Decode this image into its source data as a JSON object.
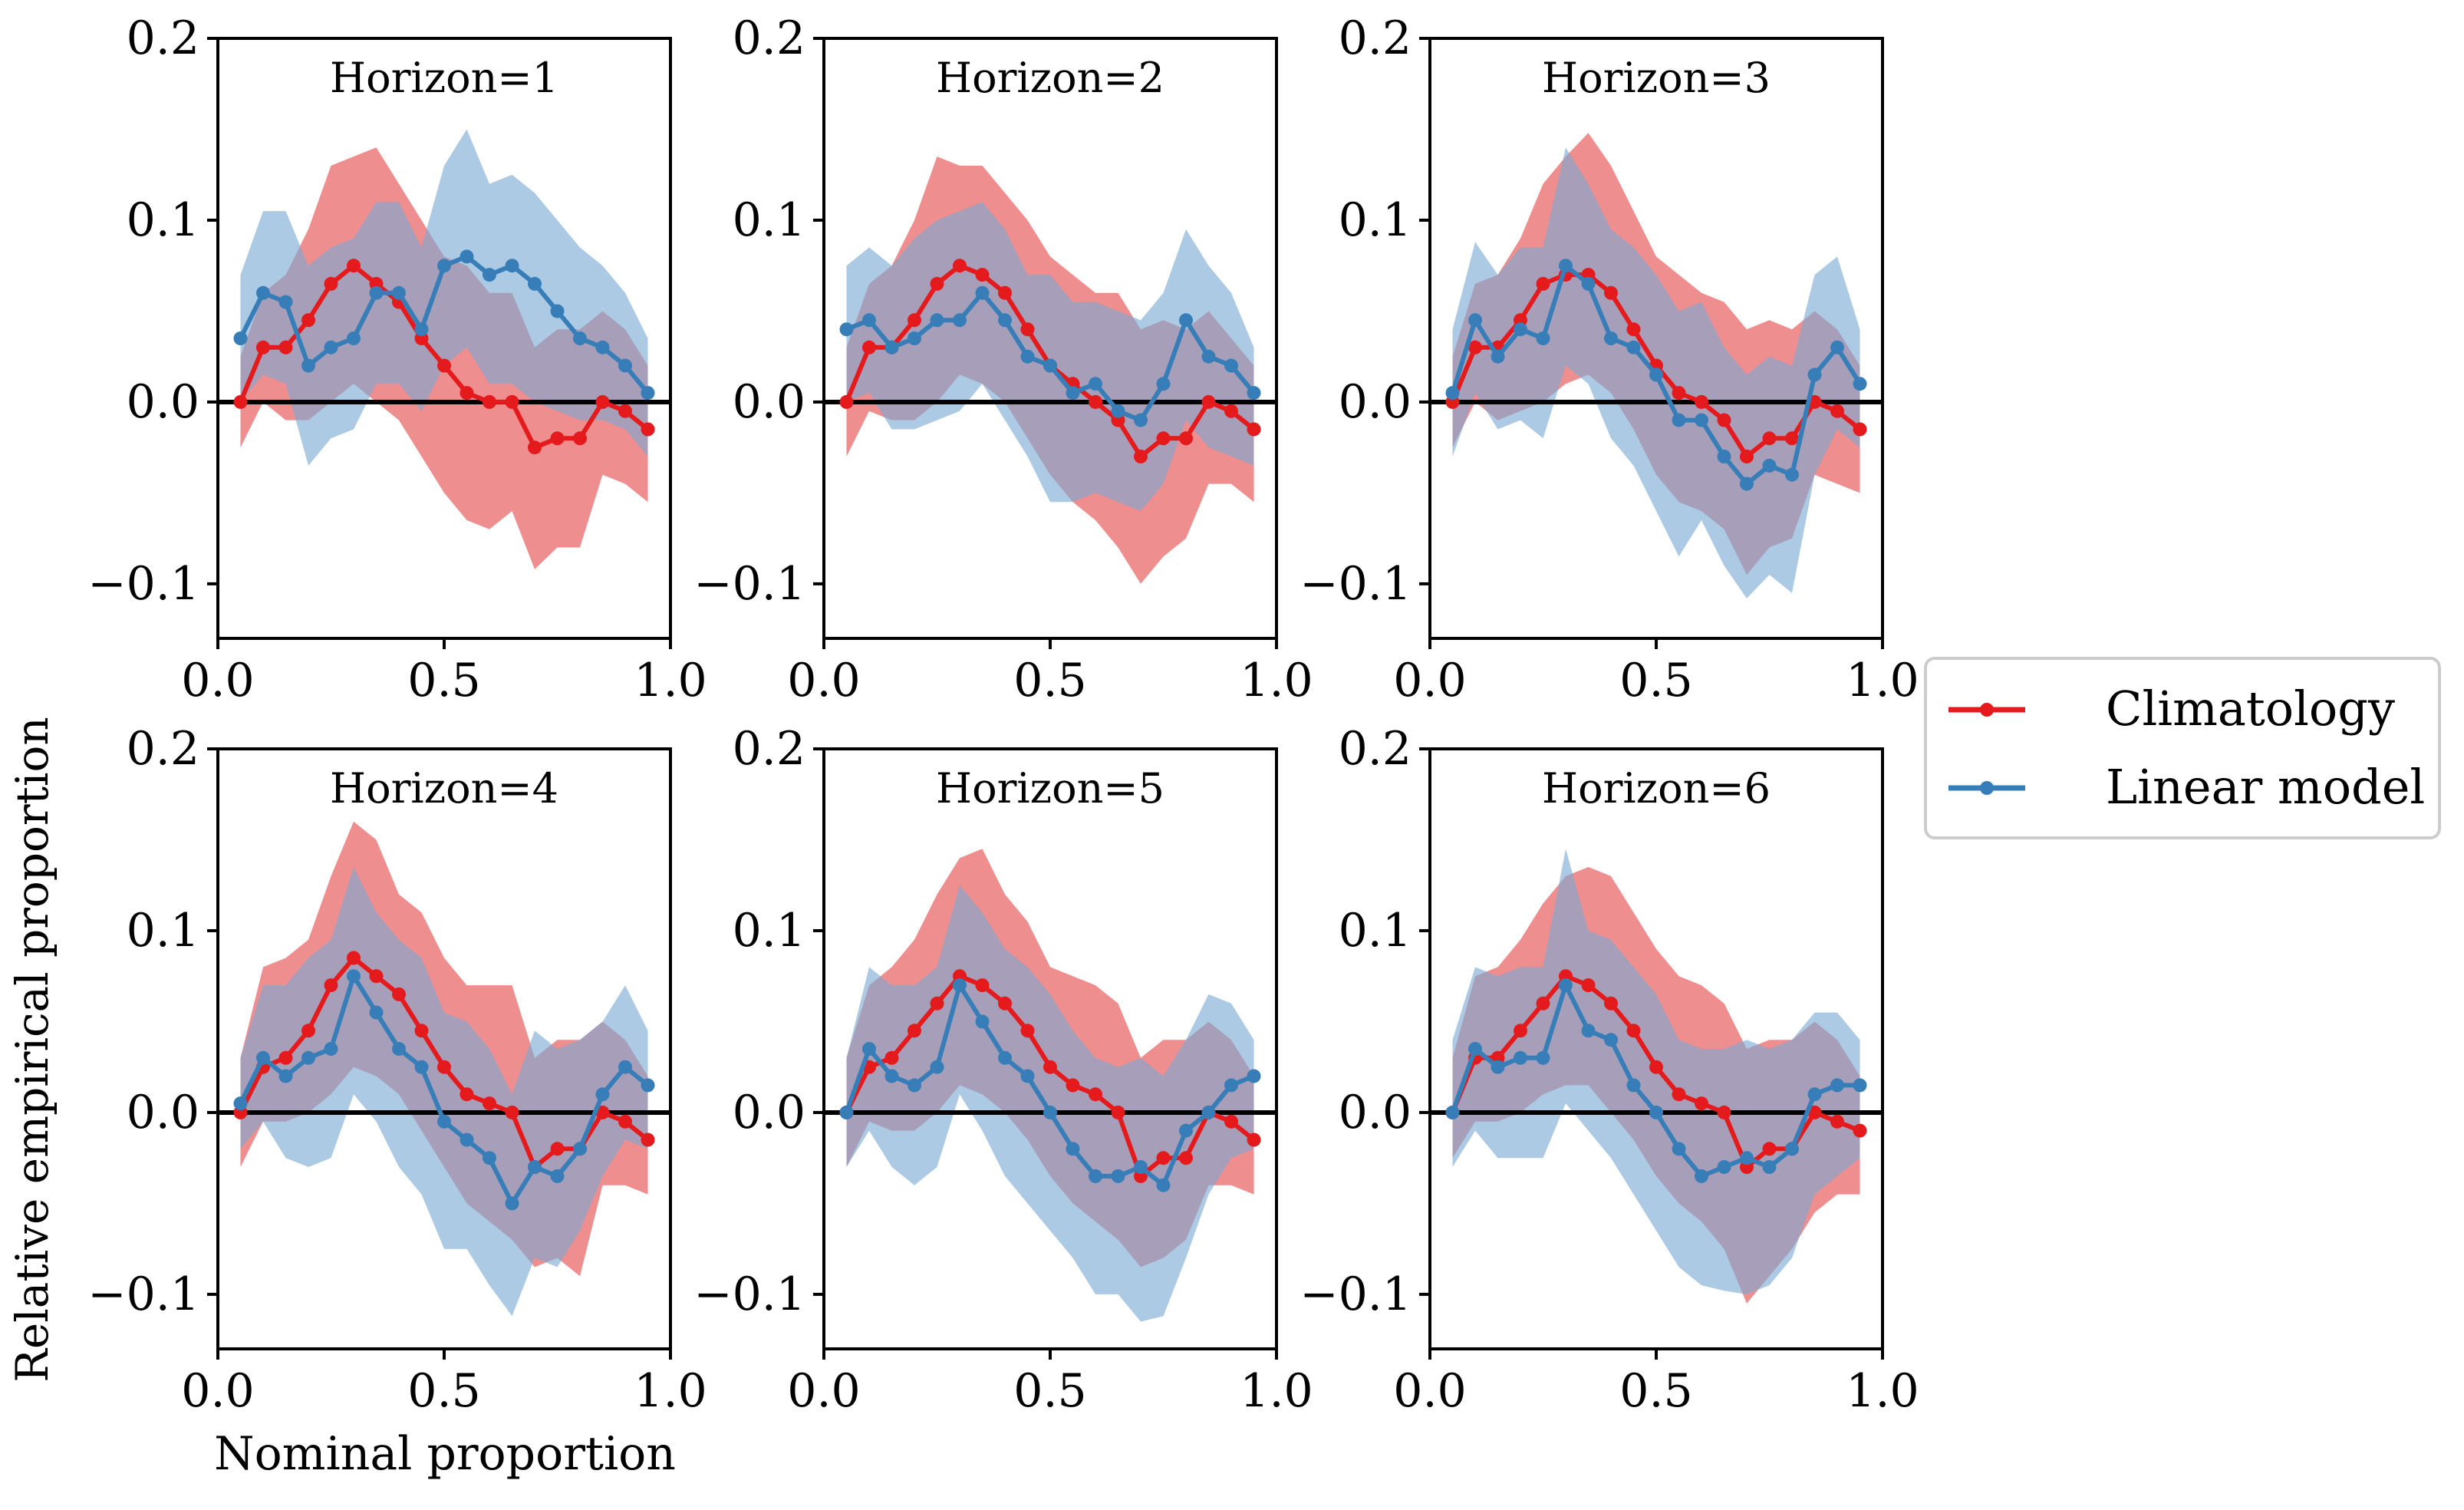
{
  "figure": {
    "ylabel": "Relative empirical proportion",
    "xlabel": "Nominal proportion",
    "legend": {
      "placement": "right-center",
      "entries": [
        {
          "name": "Climatology",
          "color": "#e41a1c"
        },
        {
          "name": "Linear model",
          "color": "#377eb8"
        }
      ]
    }
  },
  "colors": {
    "climatology_line": "#e41a1c",
    "climatology_band": "#e8585a",
    "linear_line": "#377eb8",
    "linear_band": "#7aa9d3",
    "zero_line": "#000000"
  },
  "chart_data": [
    {
      "type": "line",
      "title": "Horizon=1",
      "xlim": [
        0,
        1
      ],
      "ylim": [
        -0.13,
        0.2
      ],
      "xticks": [
        0.0,
        0.5,
        1.0
      ],
      "xtick_labels": [
        "0.0",
        "0.5",
        "1.0"
      ],
      "yticks": [
        -0.1,
        0.0,
        0.1,
        0.2
      ],
      "ytick_labels": [
        "−0.1",
        "0.0",
        "0.1",
        "0.2"
      ],
      "x": [
        0.05,
        0.1,
        0.15,
        0.2,
        0.25,
        0.3,
        0.35,
        0.4,
        0.45,
        0.5,
        0.55,
        0.6,
        0.65,
        0.7,
        0.75,
        0.8,
        0.85,
        0.9,
        0.95
      ],
      "series": [
        {
          "name": "Climatology",
          "values": [
            0.0,
            0.03,
            0.03,
            0.045,
            0.065,
            0.075,
            0.065,
            0.055,
            0.035,
            0.02,
            0.005,
            0.0,
            0.0,
            -0.025,
            -0.02,
            -0.02,
            0.0,
            -0.005,
            -0.015
          ],
          "lower": [
            -0.025,
            0.0,
            -0.01,
            -0.01,
            0.0,
            0.01,
            0.0,
            -0.01,
            -0.03,
            -0.05,
            -0.065,
            -0.07,
            -0.06,
            -0.092,
            -0.08,
            -0.08,
            -0.04,
            -0.045,
            -0.055
          ],
          "upper": [
            0.025,
            0.06,
            0.07,
            0.095,
            0.13,
            0.135,
            0.14,
            0.12,
            0.1,
            0.08,
            0.075,
            0.06,
            0.06,
            0.03,
            0.04,
            0.04,
            0.05,
            0.04,
            0.02
          ]
        },
        {
          "name": "Linear model",
          "values": [
            0.035,
            0.06,
            0.055,
            0.02,
            0.03,
            0.035,
            0.06,
            0.06,
            0.04,
            0.075,
            0.08,
            0.07,
            0.075,
            0.065,
            0.05,
            0.035,
            0.03,
            0.02,
            0.005
          ],
          "lower": [
            0.0,
            0.015,
            0.01,
            -0.035,
            -0.02,
            -0.015,
            0.01,
            0.01,
            -0.005,
            0.02,
            0.03,
            0.01,
            0.01,
            0.0,
            -0.005,
            -0.01,
            -0.01,
            -0.015,
            -0.03
          ],
          "upper": [
            0.07,
            0.105,
            0.105,
            0.075,
            0.085,
            0.09,
            0.11,
            0.11,
            0.085,
            0.13,
            0.15,
            0.12,
            0.125,
            0.115,
            0.1,
            0.085,
            0.075,
            0.06,
            0.035
          ]
        }
      ]
    },
    {
      "type": "line",
      "title": "Horizon=2",
      "xlim": [
        0,
        1
      ],
      "ylim": [
        -0.13,
        0.2
      ],
      "xticks": [
        0.0,
        0.5,
        1.0
      ],
      "xtick_labels": [
        "0.0",
        "0.5",
        "1.0"
      ],
      "yticks": [
        -0.1,
        0.0,
        0.1,
        0.2
      ],
      "ytick_labels": [
        "−0.1",
        "0.0",
        "0.1",
        "0.2"
      ],
      "x": [
        0.05,
        0.1,
        0.15,
        0.2,
        0.25,
        0.3,
        0.35,
        0.4,
        0.45,
        0.5,
        0.55,
        0.6,
        0.65,
        0.7,
        0.75,
        0.8,
        0.85,
        0.9,
        0.95
      ],
      "series": [
        {
          "name": "Climatology",
          "values": [
            0.0,
            0.03,
            0.03,
            0.045,
            0.065,
            0.075,
            0.07,
            0.06,
            0.04,
            0.02,
            0.01,
            0.0,
            -0.01,
            -0.03,
            -0.02,
            -0.02,
            0.0,
            -0.005,
            -0.015
          ],
          "lower": [
            -0.03,
            -0.005,
            -0.01,
            -0.01,
            0.0,
            0.015,
            0.01,
            0.0,
            -0.02,
            -0.04,
            -0.055,
            -0.065,
            -0.08,
            -0.1,
            -0.085,
            -0.075,
            -0.045,
            -0.045,
            -0.055
          ],
          "upper": [
            0.03,
            0.065,
            0.075,
            0.1,
            0.135,
            0.13,
            0.13,
            0.115,
            0.1,
            0.08,
            0.07,
            0.06,
            0.06,
            0.04,
            0.045,
            0.04,
            0.05,
            0.035,
            0.02
          ]
        },
        {
          "name": "Linear model",
          "values": [
            0.04,
            0.045,
            0.03,
            0.035,
            0.045,
            0.045,
            0.06,
            0.045,
            0.025,
            0.02,
            0.005,
            0.01,
            -0.005,
            -0.01,
            0.01,
            0.045,
            0.025,
            0.02,
            0.005
          ],
          "lower": [
            0.0,
            0.005,
            -0.015,
            -0.015,
            -0.01,
            -0.005,
            0.01,
            -0.01,
            -0.03,
            -0.055,
            -0.055,
            -0.05,
            -0.055,
            -0.06,
            -0.045,
            -0.01,
            -0.025,
            -0.03,
            -0.035
          ],
          "upper": [
            0.075,
            0.085,
            0.075,
            0.09,
            0.1,
            0.105,
            0.11,
            0.095,
            0.07,
            0.07,
            0.055,
            0.055,
            0.05,
            0.045,
            0.06,
            0.095,
            0.075,
            0.06,
            0.03
          ]
        }
      ]
    },
    {
      "type": "line",
      "title": "Horizon=3",
      "xlim": [
        0,
        1
      ],
      "ylim": [
        -0.13,
        0.2
      ],
      "xticks": [
        0.0,
        0.5,
        1.0
      ],
      "xtick_labels": [
        "0.0",
        "0.5",
        "1.0"
      ],
      "yticks": [
        -0.1,
        0.0,
        0.1,
        0.2
      ],
      "ytick_labels": [
        "−0.1",
        "0.0",
        "0.1",
        "0.2"
      ],
      "x": [
        0.05,
        0.1,
        0.15,
        0.2,
        0.25,
        0.3,
        0.35,
        0.4,
        0.45,
        0.5,
        0.55,
        0.6,
        0.65,
        0.7,
        0.75,
        0.8,
        0.85,
        0.9,
        0.95
      ],
      "series": [
        {
          "name": "Climatology",
          "values": [
            0.0,
            0.03,
            0.03,
            0.045,
            0.065,
            0.07,
            0.07,
            0.06,
            0.04,
            0.02,
            0.005,
            0.0,
            -0.01,
            -0.03,
            -0.02,
            -0.02,
            0.0,
            -0.005,
            -0.015
          ],
          "lower": [
            -0.025,
            0.0,
            -0.01,
            -0.005,
            0.0,
            0.01,
            0.015,
            0.005,
            -0.015,
            -0.04,
            -0.055,
            -0.06,
            -0.07,
            -0.095,
            -0.08,
            -0.075,
            -0.04,
            -0.045,
            -0.05
          ],
          "upper": [
            0.025,
            0.065,
            0.07,
            0.09,
            0.12,
            0.135,
            0.148,
            0.13,
            0.105,
            0.08,
            0.07,
            0.06,
            0.055,
            0.04,
            0.045,
            0.04,
            0.05,
            0.04,
            0.02
          ]
        },
        {
          "name": "Linear model",
          "values": [
            0.005,
            0.045,
            0.025,
            0.04,
            0.035,
            0.075,
            0.065,
            0.035,
            0.03,
            0.015,
            -0.01,
            -0.01,
            -0.03,
            -0.045,
            -0.035,
            -0.04,
            0.015,
            0.03,
            0.01
          ],
          "lower": [
            -0.03,
            0.005,
            -0.015,
            -0.01,
            -0.02,
            0.02,
            0.01,
            -0.02,
            -0.035,
            -0.06,
            -0.085,
            -0.065,
            -0.09,
            -0.108,
            -0.095,
            -0.105,
            -0.04,
            -0.015,
            -0.025
          ],
          "upper": [
            0.04,
            0.088,
            0.07,
            0.085,
            0.085,
            0.14,
            0.12,
            0.095,
            0.085,
            0.07,
            0.05,
            0.055,
            0.03,
            0.015,
            0.025,
            0.02,
            0.07,
            0.08,
            0.04
          ]
        }
      ]
    },
    {
      "type": "line",
      "title": "Horizon=4",
      "xlim": [
        0,
        1
      ],
      "ylim": [
        -0.13,
        0.2
      ],
      "xticks": [
        0.0,
        0.5,
        1.0
      ],
      "xtick_labels": [
        "0.0",
        "0.5",
        "1.0"
      ],
      "yticks": [
        -0.1,
        0.0,
        0.1,
        0.2
      ],
      "ytick_labels": [
        "−0.1",
        "0.0",
        "0.1",
        "0.2"
      ],
      "x": [
        0.05,
        0.1,
        0.15,
        0.2,
        0.25,
        0.3,
        0.35,
        0.4,
        0.45,
        0.5,
        0.55,
        0.6,
        0.65,
        0.7,
        0.75,
        0.8,
        0.85,
        0.9,
        0.95
      ],
      "series": [
        {
          "name": "Climatology",
          "values": [
            0.0,
            0.025,
            0.03,
            0.045,
            0.07,
            0.085,
            0.075,
            0.065,
            0.045,
            0.025,
            0.01,
            0.005,
            0.0,
            -0.03,
            -0.02,
            -0.02,
            0.0,
            -0.005,
            -0.015
          ],
          "lower": [
            -0.03,
            -0.005,
            -0.005,
            0.0,
            0.01,
            0.025,
            0.02,
            0.01,
            -0.01,
            -0.03,
            -0.05,
            -0.06,
            -0.07,
            -0.085,
            -0.08,
            -0.09,
            -0.04,
            -0.04,
            -0.045
          ],
          "upper": [
            0.03,
            0.08,
            0.085,
            0.095,
            0.13,
            0.16,
            0.15,
            0.12,
            0.11,
            0.085,
            0.07,
            0.07,
            0.07,
            0.03,
            0.04,
            0.04,
            0.05,
            0.04,
            0.02
          ]
        },
        {
          "name": "Linear model",
          "values": [
            0.005,
            0.03,
            0.02,
            0.03,
            0.035,
            0.075,
            0.055,
            0.035,
            0.025,
            -0.005,
            -0.015,
            -0.025,
            -0.05,
            -0.03,
            -0.035,
            -0.02,
            0.01,
            0.025,
            0.015
          ],
          "lower": [
            -0.02,
            -0.005,
            -0.025,
            -0.03,
            -0.025,
            0.01,
            -0.005,
            -0.03,
            -0.045,
            -0.075,
            -0.075,
            -0.095,
            -0.112,
            -0.08,
            -0.085,
            -0.065,
            -0.035,
            -0.015,
            -0.02
          ],
          "upper": [
            0.03,
            0.07,
            0.07,
            0.085,
            0.095,
            0.135,
            0.11,
            0.095,
            0.085,
            0.055,
            0.05,
            0.035,
            0.01,
            0.045,
            0.035,
            0.04,
            0.05,
            0.07,
            0.045
          ]
        }
      ]
    },
    {
      "type": "line",
      "title": "Horizon=5",
      "xlim": [
        0,
        1
      ],
      "ylim": [
        -0.13,
        0.2
      ],
      "xticks": [
        0.0,
        0.5,
        1.0
      ],
      "xtick_labels": [
        "0.0",
        "0.5",
        "1.0"
      ],
      "yticks": [
        -0.1,
        0.0,
        0.1,
        0.2
      ],
      "ytick_labels": [
        "−0.1",
        "0.0",
        "0.1",
        "0.2"
      ],
      "x": [
        0.05,
        0.1,
        0.15,
        0.2,
        0.25,
        0.3,
        0.35,
        0.4,
        0.45,
        0.5,
        0.55,
        0.6,
        0.65,
        0.7,
        0.75,
        0.8,
        0.85,
        0.9,
        0.95
      ],
      "series": [
        {
          "name": "Climatology",
          "values": [
            0.0,
            0.025,
            0.03,
            0.045,
            0.06,
            0.075,
            0.07,
            0.06,
            0.045,
            0.025,
            0.015,
            0.01,
            0.0,
            -0.035,
            -0.025,
            -0.025,
            0.0,
            -0.005,
            -0.015
          ],
          "lower": [
            -0.03,
            -0.005,
            -0.01,
            -0.01,
            0.0,
            0.015,
            0.01,
            0.0,
            -0.015,
            -0.035,
            -0.05,
            -0.06,
            -0.07,
            -0.085,
            -0.08,
            -0.07,
            -0.04,
            -0.04,
            -0.045
          ],
          "upper": [
            0.03,
            0.07,
            0.08,
            0.095,
            0.12,
            0.14,
            0.145,
            0.12,
            0.105,
            0.08,
            0.075,
            0.07,
            0.06,
            0.03,
            0.04,
            0.04,
            0.05,
            0.04,
            0.02
          ]
        },
        {
          "name": "Linear model",
          "values": [
            0.0,
            0.035,
            0.02,
            0.015,
            0.025,
            0.07,
            0.05,
            0.03,
            0.02,
            0.0,
            -0.02,
            -0.035,
            -0.035,
            -0.03,
            -0.04,
            -0.01,
            0.0,
            0.015,
            0.02
          ],
          "lower": [
            -0.03,
            -0.01,
            -0.03,
            -0.04,
            -0.03,
            0.01,
            -0.01,
            -0.035,
            -0.05,
            -0.065,
            -0.08,
            -0.1,
            -0.1,
            -0.115,
            -0.112,
            -0.08,
            -0.045,
            -0.025,
            -0.02
          ],
          "upper": [
            0.03,
            0.08,
            0.07,
            0.07,
            0.08,
            0.125,
            0.11,
            0.09,
            0.08,
            0.065,
            0.045,
            0.03,
            0.025,
            0.03,
            0.02,
            0.04,
            0.065,
            0.06,
            0.04
          ]
        }
      ]
    },
    {
      "type": "line",
      "title": "Horizon=6",
      "xlim": [
        0,
        1
      ],
      "ylim": [
        -0.13,
        0.2
      ],
      "xticks": [
        0.0,
        0.5,
        1.0
      ],
      "xtick_labels": [
        "0.0",
        "0.5",
        "1.0"
      ],
      "yticks": [
        -0.1,
        0.0,
        0.1,
        0.2
      ],
      "ytick_labels": [
        "−0.1",
        "0.0",
        "0.1",
        "0.2"
      ],
      "x": [
        0.05,
        0.1,
        0.15,
        0.2,
        0.25,
        0.3,
        0.35,
        0.4,
        0.45,
        0.5,
        0.55,
        0.6,
        0.65,
        0.7,
        0.75,
        0.8,
        0.85,
        0.9,
        0.95
      ],
      "series": [
        {
          "name": "Climatology",
          "values": [
            0.0,
            0.03,
            0.03,
            0.045,
            0.06,
            0.075,
            0.07,
            0.06,
            0.045,
            0.025,
            0.01,
            0.005,
            0.0,
            -0.03,
            -0.02,
            -0.02,
            0.0,
            -0.005,
            -0.01
          ],
          "lower": [
            -0.025,
            -0.005,
            -0.005,
            0.0,
            0.01,
            0.015,
            0.015,
            0.0,
            -0.015,
            -0.035,
            -0.05,
            -0.06,
            -0.075,
            -0.105,
            -0.09,
            -0.075,
            -0.055,
            -0.045,
            -0.045
          ],
          "upper": [
            0.03,
            0.075,
            0.08,
            0.095,
            0.115,
            0.13,
            0.135,
            0.13,
            0.11,
            0.09,
            0.075,
            0.07,
            0.06,
            0.035,
            0.04,
            0.04,
            0.05,
            0.04,
            0.02
          ]
        },
        {
          "name": "Linear model",
          "values": [
            0.0,
            0.035,
            0.025,
            0.03,
            0.03,
            0.07,
            0.045,
            0.04,
            0.015,
            0.0,
            -0.02,
            -0.035,
            -0.03,
            -0.025,
            -0.03,
            -0.02,
            0.01,
            0.015,
            0.015
          ],
          "lower": [
            -0.03,
            -0.01,
            -0.025,
            -0.025,
            -0.025,
            0.005,
            -0.01,
            -0.025,
            -0.045,
            -0.065,
            -0.085,
            -0.095,
            -0.098,
            -0.1,
            -0.095,
            -0.08,
            -0.045,
            -0.035,
            -0.025
          ],
          "upper": [
            0.04,
            0.08,
            0.075,
            0.08,
            0.08,
            0.145,
            0.1,
            0.095,
            0.08,
            0.065,
            0.04,
            0.035,
            0.035,
            0.04,
            0.035,
            0.04,
            0.055,
            0.055,
            0.04
          ]
        }
      ]
    }
  ]
}
